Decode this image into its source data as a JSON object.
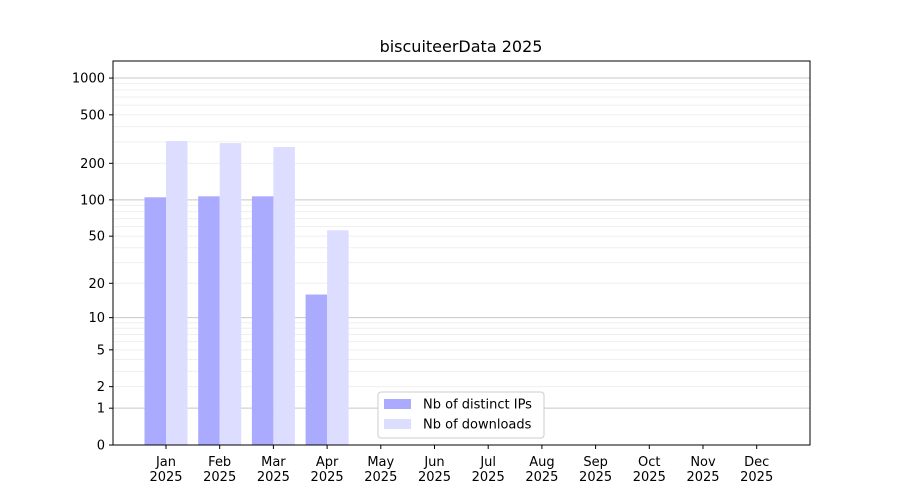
{
  "chart_data": {
    "type": "bar",
    "title": "biscuiteerData 2025",
    "xlabel": "",
    "ylabel": "",
    "yscale": "symlog (log10(1+y))",
    "ylim": [
      0,
      1300
    ],
    "yticks": [
      0,
      1,
      2,
      5,
      10,
      20,
      50,
      100,
      200,
      500,
      1000
    ],
    "ytick_labels": [
      "0",
      "1",
      "2",
      "5",
      "10",
      "20",
      "50",
      "100",
      "200",
      "500",
      "1000"
    ],
    "grid": true,
    "categories": [
      "Jan\n2025",
      "Feb\n2025",
      "Mar\n2025",
      "Apr\n2025",
      "May\n2025",
      "Jun\n2025",
      "Jul\n2025",
      "Aug\n2025",
      "Sep\n2025",
      "Oct\n2025",
      "Nov\n2025",
      "Dec\n2025"
    ],
    "series": [
      {
        "name": "Nb of distinct IPs",
        "color": "#aaaaff",
        "values": [
          105,
          107,
          107,
          16,
          0,
          0,
          0,
          0,
          0,
          0,
          0,
          0
        ]
      },
      {
        "name": "Nb of downloads",
        "color": "#ddddff",
        "values": [
          305,
          293,
          272,
          56,
          0,
          0,
          0,
          0,
          0,
          0,
          0,
          0
        ]
      }
    ],
    "legend_placement": "lower-center"
  }
}
